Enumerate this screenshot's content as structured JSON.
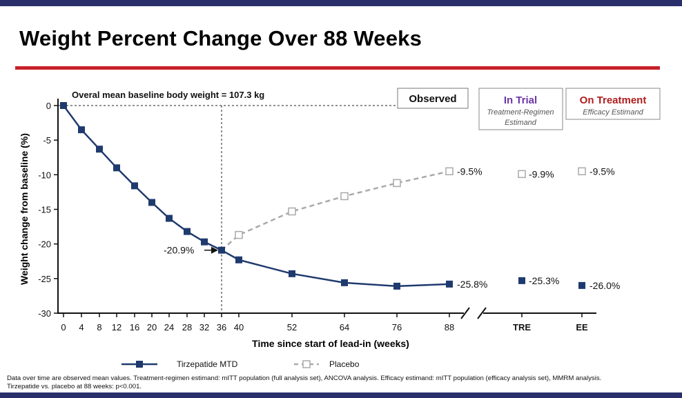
{
  "title": "Weight Percent Change Over 88 Weeks",
  "footnote": {
    "line1": "Data over time are observed mean values. Treatment-regimen estimand: mITT population (full analysis set), ANCOVA analysis. Efficacy estimand: mITT population (efficacy analysis set), MMRM analysis.",
    "line2": "Tirzepatide vs. placebo at 88 weeks: p<0.001."
  },
  "chart_data": {
    "type": "line",
    "title": "Weight Percent Change Over 88 Weeks",
    "annotation": "Overal mean baseline body weight = 107.3 kg",
    "xlabel": "Time since start of lead-in (weeks)",
    "ylabel": "Weight change from baseline (%)",
    "ylim": [
      -30,
      0
    ],
    "yticks": [
      0,
      -5,
      -10,
      -15,
      -20,
      -25,
      -30
    ],
    "xticks": [
      0,
      4,
      8,
      12,
      16,
      20,
      24,
      28,
      32,
      36,
      40,
      52,
      64,
      76,
      88
    ],
    "extra_categories": [
      "TRE",
      "EE"
    ],
    "randomization_week": 36,
    "randomization_label": "-20.9%",
    "series": [
      {
        "name": "Tirzepatide MTD",
        "color": "#1f3a6e",
        "x": [
          0,
          4,
          8,
          12,
          16,
          20,
          24,
          28,
          32,
          36,
          40,
          52,
          64,
          76,
          88
        ],
        "values": [
          0,
          -3.5,
          -6.3,
          -9.0,
          -11.6,
          -14.0,
          -16.3,
          -18.2,
          -19.7,
          -20.9,
          -22.3,
          -24.3,
          -25.6,
          -26.1,
          -25.8
        ],
        "end_label": "-25.8%",
        "TRE": -25.3,
        "TRE_label": "-25.3%",
        "EE": -26.0,
        "EE_label": "-26.0%"
      },
      {
        "name": "Placebo",
        "color": "#a9a9a9",
        "x": [
          36,
          40,
          52,
          64,
          76,
          88
        ],
        "values": [
          -20.9,
          -18.7,
          -15.3,
          -13.1,
          -11.2,
          -9.5
        ],
        "end_label": "-9.5%",
        "TRE": -9.9,
        "TRE_label": "-9.9%",
        "EE": -9.5,
        "EE_label": "-9.5%"
      }
    ],
    "boxes": {
      "observed": "Observed",
      "in_trial": "In Trial",
      "in_trial_sub": "Treatment-Regimen Estimand",
      "on_treatment": "On Treatment",
      "on_treatment_sub": "Efficacy Estimand"
    },
    "colors": {
      "in_trial": "#6b35a8",
      "on_treatment": "#b01c1c"
    }
  }
}
